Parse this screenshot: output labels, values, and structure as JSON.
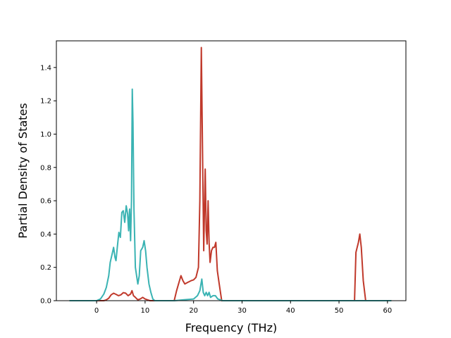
{
  "chart_data": {
    "type": "line",
    "title": "",
    "xlabel": "Frequency (THz)",
    "ylabel": "Partial Density of States",
    "xlim": [
      -8.3,
      63.8
    ],
    "ylim": [
      0,
      1.56
    ],
    "xticks": [
      0,
      10,
      20,
      30,
      40,
      50,
      60
    ],
    "yticks": [
      0.0,
      0.2,
      0.4,
      0.6,
      0.8,
      1.0,
      1.2,
      1.4
    ],
    "grid": false,
    "legend": "none",
    "series": [
      {
        "color": "#c0392b",
        "points": [
          [
            -5.6,
            0
          ],
          [
            1.5,
            0
          ],
          [
            2,
            0.005
          ],
          [
            2.5,
            0.015
          ],
          [
            3,
            0.035
          ],
          [
            3.5,
            0.045
          ],
          [
            4,
            0.038
          ],
          [
            4.5,
            0.03
          ],
          [
            5,
            0.035
          ],
          [
            5.5,
            0.048
          ],
          [
            6,
            0.045
          ],
          [
            6.5,
            0.03
          ],
          [
            7,
            0.04
          ],
          [
            7.3,
            0.06
          ],
          [
            7.6,
            0.03
          ],
          [
            8,
            0.02
          ],
          [
            8.5,
            0.005
          ],
          [
            9,
            0.01
          ],
          [
            9.5,
            0.02
          ],
          [
            10,
            0.01
          ],
          [
            10.5,
            0.005
          ],
          [
            11,
            0
          ],
          [
            16,
            0
          ],
          [
            16.5,
            0.06
          ],
          [
            17,
            0.11
          ],
          [
            17.4,
            0.15
          ],
          [
            17.8,
            0.12
          ],
          [
            18.2,
            0.1
          ],
          [
            18.8,
            0.11
          ],
          [
            19.5,
            0.12
          ],
          [
            20,
            0.125
          ],
          [
            20.5,
            0.14
          ],
          [
            21,
            0.2
          ],
          [
            21.3,
            0.6
          ],
          [
            21.6,
            1.52
          ],
          [
            21.9,
            0.75
          ],
          [
            22.1,
            0.3
          ],
          [
            22.4,
            0.79
          ],
          [
            22.6,
            0.42
          ],
          [
            22.8,
            0.34
          ],
          [
            23,
            0.6
          ],
          [
            23.2,
            0.35
          ],
          [
            23.4,
            0.23
          ],
          [
            23.7,
            0.3
          ],
          [
            24,
            0.32
          ],
          [
            24.3,
            0.32
          ],
          [
            24.6,
            0.35
          ],
          [
            24.9,
            0.18
          ],
          [
            25.3,
            0.1
          ],
          [
            25.8,
            0
          ],
          [
            53.2,
            0
          ],
          [
            53.5,
            0.29
          ],
          [
            54,
            0.35
          ],
          [
            54.3,
            0.4
          ],
          [
            54.6,
            0.32
          ],
          [
            55,
            0.12
          ],
          [
            55.5,
            0
          ],
          [
            60.8,
            0
          ]
        ]
      },
      {
        "color": "#3ab3b3",
        "points": [
          [
            -5.6,
            0
          ],
          [
            0,
            0
          ],
          [
            0.8,
            0.01
          ],
          [
            1.5,
            0.04
          ],
          [
            2,
            0.08
          ],
          [
            2.5,
            0.15
          ],
          [
            2.8,
            0.23
          ],
          [
            3.2,
            0.28
          ],
          [
            3.5,
            0.32
          ],
          [
            3.8,
            0.26
          ],
          [
            4,
            0.24
          ],
          [
            4.3,
            0.33
          ],
          [
            4.6,
            0.41
          ],
          [
            4.9,
            0.38
          ],
          [
            5.2,
            0.53
          ],
          [
            5.5,
            0.54
          ],
          [
            5.8,
            0.47
          ],
          [
            6.1,
            0.57
          ],
          [
            6.4,
            0.52
          ],
          [
            6.6,
            0.42
          ],
          [
            6.8,
            0.55
          ],
          [
            7,
            0.36
          ],
          [
            7.2,
            0.6
          ],
          [
            7.35,
            1.27
          ],
          [
            7.5,
            1.07
          ],
          [
            7.7,
            0.55
          ],
          [
            8,
            0.2
          ],
          [
            8.5,
            0.1
          ],
          [
            8.8,
            0.15
          ],
          [
            9.1,
            0.3
          ],
          [
            9.5,
            0.32
          ],
          [
            9.8,
            0.36
          ],
          [
            10.1,
            0.3
          ],
          [
            10.4,
            0.2
          ],
          [
            10.8,
            0.1
          ],
          [
            11.2,
            0.05
          ],
          [
            11.6,
            0.01
          ],
          [
            12,
            0
          ],
          [
            16,
            0
          ],
          [
            18,
            0.005
          ],
          [
            20,
            0.01
          ],
          [
            20.8,
            0.03
          ],
          [
            21.3,
            0.06
          ],
          [
            21.7,
            0.13
          ],
          [
            22,
            0.05
          ],
          [
            22.3,
            0.03
          ],
          [
            22.6,
            0.05
          ],
          [
            22.9,
            0.03
          ],
          [
            23.2,
            0.05
          ],
          [
            23.5,
            0.02
          ],
          [
            24,
            0.03
          ],
          [
            24.5,
            0.03
          ],
          [
            25,
            0.01
          ],
          [
            26,
            0
          ],
          [
            60.8,
            0
          ]
        ]
      }
    ]
  }
}
